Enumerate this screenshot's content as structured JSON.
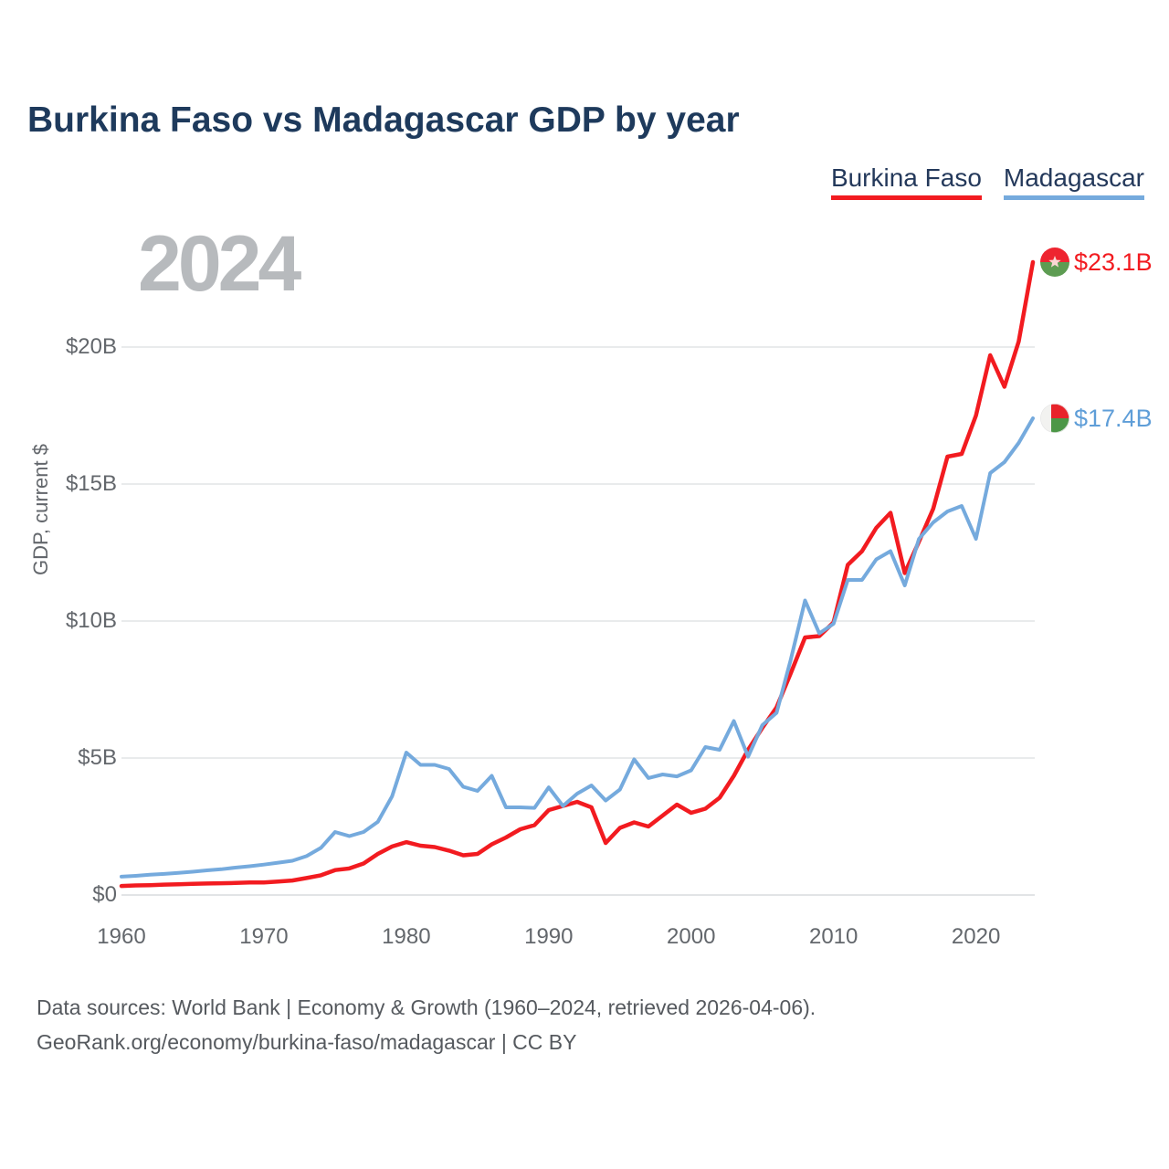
{
  "title": "Burkina Faso vs Madagascar GDP by year",
  "watermark": "2024",
  "legend": {
    "items": [
      {
        "label": "Burkina Faso",
        "color": "#f21b20"
      },
      {
        "label": "Madagascar",
        "color": "#75aadd"
      }
    ]
  },
  "chart_data": {
    "type": "line",
    "title": "Burkina Faso vs Madagascar GDP by year",
    "xlabel": "",
    "ylabel": "GDP, current $",
    "xlim": [
      1960,
      2024
    ],
    "ylim": [
      0,
      25
    ],
    "grid": "horizontal",
    "legend_position": "top-right",
    "x_ticks": [
      1960,
      1970,
      1980,
      1990,
      2000,
      2010,
      2020
    ],
    "y_ticks": [
      {
        "value": 0,
        "label": "$0"
      },
      {
        "value": 5,
        "label": "$5B"
      },
      {
        "value": 10,
        "label": "$10B"
      },
      {
        "value": 15,
        "label": "$15B"
      },
      {
        "value": 20,
        "label": "$20B"
      }
    ],
    "x": [
      1960,
      1961,
      1962,
      1963,
      1964,
      1965,
      1966,
      1967,
      1968,
      1969,
      1970,
      1971,
      1972,
      1973,
      1974,
      1975,
      1976,
      1977,
      1978,
      1979,
      1980,
      1981,
      1982,
      1983,
      1984,
      1985,
      1986,
      1987,
      1988,
      1989,
      1990,
      1991,
      1992,
      1993,
      1994,
      1995,
      1996,
      1997,
      1998,
      1999,
      2000,
      2001,
      2002,
      2003,
      2004,
      2005,
      2006,
      2007,
      2008,
      2009,
      2010,
      2011,
      2012,
      2013,
      2014,
      2015,
      2016,
      2017,
      2018,
      2019,
      2020,
      2021,
      2022,
      2023,
      2024
    ],
    "units": "billions of current US$",
    "series": [
      {
        "name": "Burkina Faso",
        "color": "#f21b20",
        "end_label": "$23.1B",
        "flag_icon": "burkina-faso-flag-icon",
        "values": [
          0.33,
          0.35,
          0.36,
          0.38,
          0.39,
          0.41,
          0.42,
          0.43,
          0.44,
          0.46,
          0.46,
          0.49,
          0.53,
          0.62,
          0.72,
          0.91,
          0.97,
          1.15,
          1.5,
          1.77,
          1.93,
          1.8,
          1.75,
          1.62,
          1.45,
          1.5,
          1.85,
          2.1,
          2.4,
          2.55,
          3.1,
          3.25,
          3.4,
          3.2,
          1.9,
          2.45,
          2.65,
          2.5,
          2.9,
          3.3,
          3.0,
          3.15,
          3.55,
          4.35,
          5.3,
          6.1,
          6.85,
          8.1,
          9.4,
          9.45,
          9.95,
          12.05,
          12.55,
          13.4,
          13.95,
          11.75,
          12.9,
          14.1,
          16.0,
          16.1,
          17.5,
          19.7,
          18.55,
          20.2,
          23.1
        ]
      },
      {
        "name": "Madagascar",
        "color": "#75aadd",
        "end_label": "$17.4B",
        "flag_icon": "madagascar-flag-icon",
        "values": [
          0.67,
          0.7,
          0.74,
          0.77,
          0.81,
          0.85,
          0.9,
          0.94,
          1.0,
          1.05,
          1.11,
          1.18,
          1.25,
          1.42,
          1.72,
          2.3,
          2.15,
          2.3,
          2.67,
          3.6,
          5.2,
          4.75,
          4.75,
          4.6,
          3.95,
          3.8,
          4.35,
          3.2,
          3.2,
          3.18,
          3.93,
          3.25,
          3.7,
          4.0,
          3.45,
          3.85,
          4.95,
          4.27,
          4.4,
          4.33,
          4.55,
          5.4,
          5.3,
          6.35,
          5.05,
          6.2,
          6.65,
          8.6,
          10.75,
          9.55,
          9.9,
          11.5,
          11.5,
          12.25,
          12.55,
          11.3,
          13.0,
          13.6,
          14.0,
          14.2,
          13.0,
          15.4,
          15.8,
          16.5,
          17.4
        ]
      }
    ]
  },
  "footer": {
    "line1": "Data sources: World Bank | Economy & Growth (1960–2024, retrieved 2026-04-06).",
    "line2": "GeoRank.org/economy/burkina-faso/madagascar | CC BY"
  }
}
